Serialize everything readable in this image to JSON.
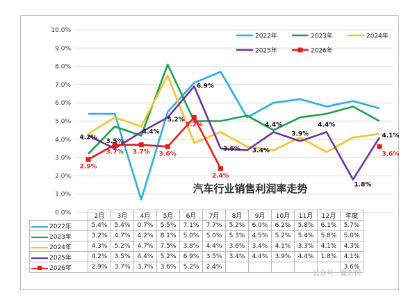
{
  "chart_data": {
    "type": "line",
    "title": "汽车行业销售利润率走势",
    "categories": [
      "2月",
      "3月",
      "4月",
      "5月",
      "6月",
      "7月",
      "8月",
      "9月",
      "10月",
      "11月",
      "12月",
      "年度"
    ],
    "y_ticks": [
      "0.0%",
      "1.0%",
      "2.0%",
      "3.0%",
      "4.0%",
      "5.0%",
      "6.0%",
      "7.0%",
      "8.0%",
      "9.0%",
      "10.0%"
    ],
    "ylim": [
      0,
      10
    ],
    "grid": true,
    "legend_position": "top-right",
    "series": [
      {
        "name": "2022年",
        "color": "#27aee3",
        "marker": "none",
        "values": [
          5.4,
          5.4,
          0.7,
          5.5,
          7.1,
          7.7,
          5.2,
          6.0,
          6.2,
          5.8,
          6.1,
          5.7
        ],
        "table": [
          "5.4%",
          "5.4%",
          "0.7%",
          "5.5%",
          "7.1%",
          "7.7%",
          "5.2%",
          "6.0%",
          "6.2%",
          "5.8%",
          "6.1%",
          "5.7%"
        ]
      },
      {
        "name": "2023年",
        "color": "#18a04f",
        "marker": "none",
        "values": [
          3.2,
          4.7,
          4.2,
          8.1,
          5.0,
          5.0,
          5.3,
          4.5,
          5.2,
          5.4,
          5.8,
          5.0
        ],
        "table": [
          "3.2%",
          "4.7%",
          "4.2%",
          "8.1%",
          "5.0%",
          "5.0%",
          "5.3%",
          "4.5%",
          "5.2%",
          "5.4%",
          "5.8%",
          "5.0%"
        ]
      },
      {
        "name": "2024年",
        "color": "#f6c22a",
        "marker": "none",
        "values": [
          4.3,
          5.2,
          4.7,
          7.5,
          3.8,
          4.4,
          3.6,
          3.4,
          4.1,
          3.3,
          4.1,
          4.3
        ],
        "table": [
          "4.3%",
          "5.2%",
          "4.7%",
          "7.5%",
          "3.8%",
          "4.4%",
          "3.6%",
          "3.4%",
          "4.1%",
          "3.3%",
          "4.1%",
          "4.3%"
        ]
      },
      {
        "name": "2025年",
        "color": "#7030a0",
        "marker": "none",
        "values": [
          4.2,
          3.5,
          4.4,
          5.2,
          6.9,
          3.5,
          3.4,
          4.4,
          3.9,
          4.4,
          1.8,
          4.1
        ],
        "table": [
          "4.2%",
          "3.5%",
          "4.4%",
          "5.2%",
          "6.9%",
          "3.5%",
          "3.4%",
          "4.4%",
          "3.9%",
          "4.4%",
          "1.8%",
          "4.1%"
        ]
      },
      {
        "name": "2026年",
        "color": "#e31d1c",
        "marker": "square",
        "values": [
          2.9,
          3.7,
          3.7,
          3.6,
          5.2,
          2.4,
          null,
          null,
          null,
          null,
          null,
          3.6
        ],
        "table": [
          "2.9%",
          "3.7%",
          "3.7%",
          "3.6%",
          "5.2%",
          "2.4%",
          "",
          "",
          "",
          "",
          "",
          "3.6%"
        ]
      }
    ],
    "annotations": [
      {
        "series": 4,
        "index": 0,
        "text": "2.9%",
        "color": "#e31d1c"
      },
      {
        "series": 4,
        "index": 1,
        "text": "3.7%",
        "color": "#e31d1c"
      },
      {
        "series": 4,
        "index": 2,
        "text": "3.7%",
        "color": "#e31d1c"
      },
      {
        "series": 4,
        "index": 3,
        "text": "3.6%",
        "color": "#e31d1c"
      },
      {
        "series": 4,
        "index": 4,
        "text": "5.2%",
        "color": "#e31d1c"
      },
      {
        "series": 4,
        "index": 5,
        "text": "2.4%",
        "color": "#e31d1c"
      },
      {
        "series": 4,
        "index": 11,
        "text": "3.6%",
        "color": "#e31d1c"
      },
      {
        "series": 3,
        "index": 0,
        "text": "4.2%",
        "color": "#111111"
      },
      {
        "series": 3,
        "index": 1,
        "text": "3.5%",
        "color": "#111111"
      },
      {
        "series": 3,
        "index": 2,
        "text": "4.4%",
        "color": "#111111"
      },
      {
        "series": 3,
        "index": 3,
        "text": "5.2%",
        "color": "#111111"
      },
      {
        "series": 3,
        "index": 4,
        "text": "6.9%",
        "color": "#111111"
      },
      {
        "series": 3,
        "index": 5,
        "text": "3.5%",
        "color": "#111111"
      },
      {
        "series": 3,
        "index": 6,
        "text": "3.4%",
        "color": "#111111"
      },
      {
        "series": 3,
        "index": 7,
        "text": "4.4%",
        "color": "#111111"
      },
      {
        "series": 3,
        "index": 8,
        "text": "3.9%",
        "color": "#111111"
      },
      {
        "series": 3,
        "index": 9,
        "text": "4.4%",
        "color": "#111111"
      },
      {
        "series": 3,
        "index": 10,
        "text": "1.8%",
        "color": "#111111"
      },
      {
        "series": 3,
        "index": 11,
        "text": "4.1%",
        "color": "#111111"
      }
    ]
  },
  "watermark": "公众号 · 崔东树"
}
